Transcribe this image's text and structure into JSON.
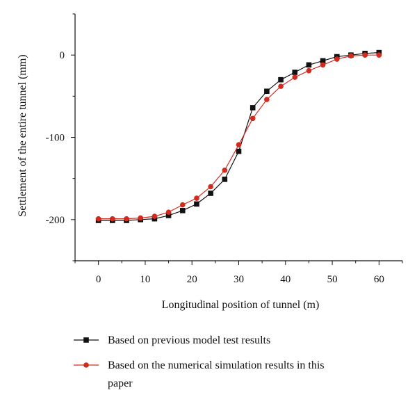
{
  "chart_data": {
    "type": "line",
    "xlabel": "Longitudinal position of tunnel (m)",
    "ylabel": "Settlement of the entire tunnel (mm)",
    "xlim": [
      -5,
      65
    ],
    "ylim": [
      -250,
      50
    ],
    "xticks": [
      0,
      10,
      20,
      30,
      40,
      50,
      60
    ],
    "xtick_labels": [
      "0",
      "10",
      "20",
      "30",
      "40",
      "50",
      "60"
    ],
    "yticks": [
      0,
      -100,
      -200
    ],
    "ytick_labels": [
      "0",
      "-100",
      "-200"
    ],
    "grid": false,
    "legend_position": "bottom",
    "series": [
      {
        "name": "Based on previous model test results",
        "color": "#111111",
        "marker": "square",
        "x": [
          0,
          3,
          6,
          9,
          12,
          15,
          18,
          21,
          24,
          27,
          30,
          33,
          36,
          39,
          42,
          45,
          48,
          51,
          54,
          57,
          60
        ],
        "y": [
          -201,
          -201,
          -201,
          -200,
          -199,
          -195,
          -189,
          -181,
          -168,
          -151,
          -117,
          -64,
          -44,
          -30,
          -21,
          -12,
          -7,
          -2,
          0,
          2,
          3
        ]
      },
      {
        "name": "Based on the numerical simulation results in this paper",
        "color": "#d42a1e",
        "marker": "circle",
        "x": [
          0,
          3,
          6,
          9,
          12,
          15,
          18,
          21,
          24,
          27,
          30,
          33,
          36,
          39,
          42,
          45,
          48,
          51,
          54,
          57,
          60
        ],
        "y": [
          -199,
          -199,
          -199,
          -198,
          -196,
          -191,
          -182,
          -174,
          -160,
          -140,
          -109,
          -77,
          -54,
          -38,
          -27,
          -19,
          -12,
          -5,
          -1,
          0,
          0
        ]
      }
    ],
    "legend_lines": [
      [
        "Based on previous model test results"
      ],
      [
        "Based on the numerical simulation results in this",
        "paper"
      ]
    ]
  }
}
